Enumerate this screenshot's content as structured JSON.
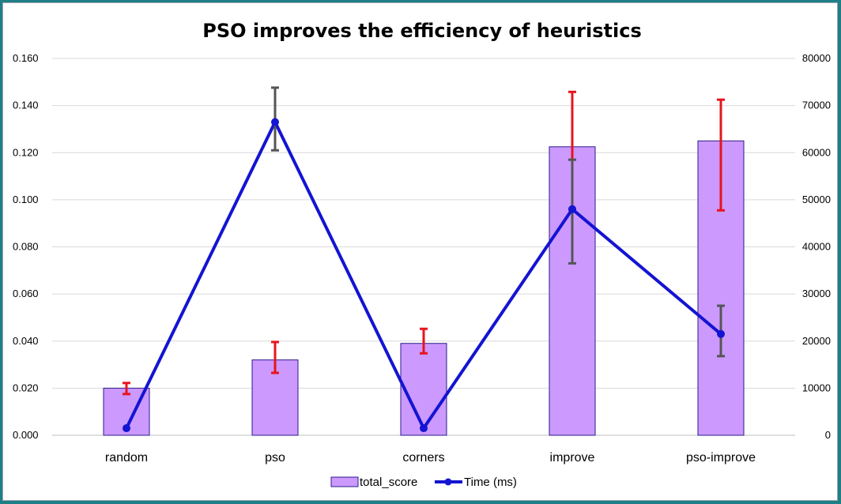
{
  "chart_data": {
    "type": "bar+line",
    "title": "PSO improves the efficiency of heuristics",
    "categories": [
      "random",
      "pso",
      "corners",
      "improve",
      "pso-improve"
    ],
    "left_axis": {
      "ylim": [
        0,
        0.16
      ],
      "ticks": [
        "0.000",
        "0.020",
        "0.040",
        "0.060",
        "0.080",
        "0.100",
        "0.120",
        "0.140",
        "0.160"
      ]
    },
    "right_axis": {
      "ylim": [
        0,
        80000
      ],
      "ticks": [
        "0",
        "10000",
        "20000",
        "30000",
        "40000",
        "50000",
        "60000",
        "70000",
        "80000"
      ]
    },
    "grid": true,
    "legend_position": "bottom",
    "series": [
      {
        "name": "total_score",
        "kind": "bar",
        "axis": "left",
        "color": "#cc99ff",
        "border_color": "#2b1a8a",
        "values": [
          0.02,
          0.032,
          0.039,
          0.1225,
          0.125
        ],
        "error_low": [
          0.0175,
          0.0265,
          0.0348,
          0.0958,
          0.0955
        ],
        "error_high": [
          0.0222,
          0.0396,
          0.0452,
          0.1458,
          0.1425
        ],
        "error_color": "#e8141e"
      },
      {
        "name": "Time (ms)",
        "kind": "line",
        "axis": "right",
        "color": "#1414d2",
        "values": [
          1500,
          66500,
          1500,
          48000,
          21500
        ],
        "error_low": [
          1500,
          60500,
          1500,
          36500,
          16800
        ],
        "error_high": [
          1500,
          73800,
          1500,
          58500,
          27500
        ],
        "error_color": "#555555"
      }
    ]
  }
}
